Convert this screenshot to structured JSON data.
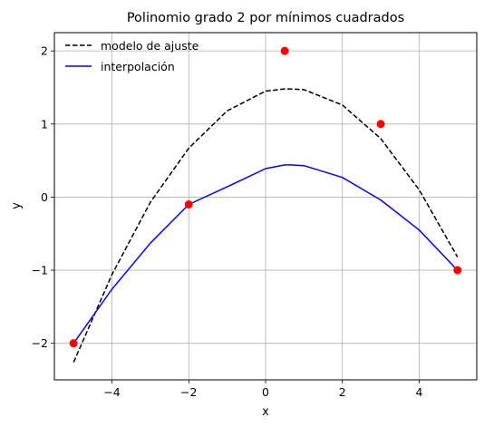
{
  "chart_data": {
    "type": "line",
    "title": "Polinomio grado 2 por mínimos cuadrados",
    "xlabel": "x",
    "ylabel": "y",
    "xlim": [
      -5.5,
      5.5
    ],
    "ylim": [
      -2.5,
      2.25
    ],
    "xticks": [
      -4,
      -2,
      0,
      2,
      4
    ],
    "yticks": [
      -2,
      -1,
      0,
      1,
      2
    ],
    "xtick_labels": [
      "−4",
      "−2",
      "0",
      "2",
      "4"
    ],
    "ytick_labels": [
      "−2",
      "−1",
      "0",
      "1",
      "2"
    ],
    "grid": true,
    "legend_position": "top-left",
    "data_points": {
      "x": [
        -5,
        -2,
        0.5,
        3,
        5
      ],
      "y": [
        -2,
        -0.1,
        2,
        1,
        -1
      ],
      "color": "#ff0000"
    },
    "series": [
      {
        "name": "modelo de ajuste",
        "style": "dashed",
        "color": "#000000",
        "x": [
          -5,
          -4,
          -3,
          -2,
          -1,
          0,
          0.5,
          0.65,
          1,
          2,
          3,
          4,
          5
        ],
        "y": [
          -2.26,
          -1.06,
          -0.07,
          0.67,
          1.18,
          1.45,
          1.48,
          1.48,
          1.47,
          1.26,
          0.8,
          0.1,
          -0.82
        ]
      },
      {
        "name": "interpolación",
        "style": "solid",
        "color": "#0000ff",
        "x": [
          -5,
          -4,
          -3,
          -2,
          -1,
          0,
          0.5,
          0.65,
          1,
          2,
          3,
          4,
          5
        ],
        "y": [
          -2,
          -1.26,
          -0.63,
          -0.1,
          0.14,
          0.39,
          0.44,
          0.44,
          0.43,
          0.27,
          -0.04,
          -0.45,
          -1
        ]
      }
    ]
  }
}
